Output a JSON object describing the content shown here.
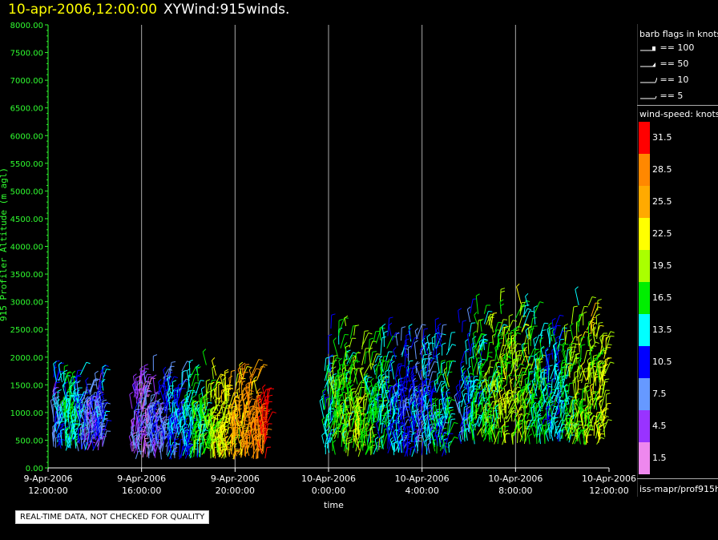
{
  "header": {
    "timestamp": "10-apr-2006,12:00:00",
    "title": "XYWind:915winds."
  },
  "legend": {
    "barb_title": "barb flags in knots",
    "barb_items": [
      "== 100",
      "== 50",
      "== 10",
      "== 5"
    ],
    "colorbar_title": "wind-speed: knots",
    "colorbar_labels": [
      "31.5",
      "28.5",
      "25.5",
      "22.5",
      "19.5",
      "16.5",
      "13.5",
      "10.5",
      "7.5",
      "4.5",
      "1.5"
    ],
    "colorbar_colors": [
      "#ff0000",
      "#ff8800",
      "#ffaa00",
      "#ffff00",
      "#aaff00",
      "#00ee00",
      "#00ffff",
      "#0000ff",
      "#6699ff",
      "#9933ff",
      "#ee88ee"
    ],
    "path": "iss-mapr/prof915h"
  },
  "footer": {
    "warning": "REAL-TIME DATA, NOT CHECKED FOR QUALITY"
  },
  "colors": {
    "axis": "#30ff30",
    "grid": "#aaaaaa",
    "timestamp": "#ffff00"
  },
  "chart_data": {
    "type": "scatter",
    "title": "XYWind:915winds.",
    "xlabel": "time",
    "ylabel": "915 Profiler Altitude (m agl)",
    "ylim": [
      0,
      8000
    ],
    "yticks": [
      "0.00",
      "500.00",
      "1000.00",
      "1500.00",
      "2000.00",
      "2500.00",
      "3000.00",
      "3500.00",
      "4000.00",
      "4500.00",
      "5000.00",
      "5500.00",
      "6000.00",
      "6500.00",
      "7000.00",
      "7500.00",
      "8000.00"
    ],
    "xticks": [
      {
        "date": "9-Apr-2006",
        "time": "12:00:00"
      },
      {
        "date": "9-Apr-2006",
        "time": "16:00:00"
      },
      {
        "date": "9-Apr-2006",
        "time": "20:00:00"
      },
      {
        "date": "10-Apr-2006",
        "time": "0:00:00"
      },
      {
        "date": "10-Apr-2006",
        "time": "4:00:00"
      },
      {
        "date": "10-Apr-2006",
        "time": "8:00:00"
      },
      {
        "date": "10-Apr-2006",
        "time": "12:00:00"
      }
    ],
    "xlim_hours": [
      0,
      24
    ],
    "grid": true,
    "series": [
      {
        "hours": [
          0.2,
          0.6,
          1.0,
          1.8,
          2.4
        ],
        "alt_min": 300,
        "alt_max": 1800,
        "speed_kt": [
          8,
          12,
          15,
          6,
          10
        ]
      },
      {
        "hours": [
          3.6,
          4.2,
          5.0,
          5.8,
          6.5,
          7.0,
          7.8,
          8.6,
          9.4
        ],
        "alt_min": 150,
        "alt_max": 1900,
        "speed_kt": [
          6,
          5,
          9,
          12,
          17,
          20,
          23,
          27,
          31
        ]
      },
      {
        "hours": [
          11.8,
          12.4,
          13.2,
          14.0,
          14.8,
          15.6,
          16.4,
          17.2
        ],
        "alt_min": 200,
        "alt_max": 2700,
        "speed_kt": [
          13,
          17,
          19,
          16,
          12,
          9,
          11,
          14
        ]
      },
      {
        "hours": [
          17.6,
          18.4,
          19.2,
          20.0,
          20.8,
          21.6,
          22.4,
          23.2,
          23.9
        ],
        "alt_min": 400,
        "alt_max": 3100,
        "speed_kt": [
          10,
          15,
          18,
          20,
          16,
          12,
          18,
          21,
          20
        ]
      }
    ]
  }
}
